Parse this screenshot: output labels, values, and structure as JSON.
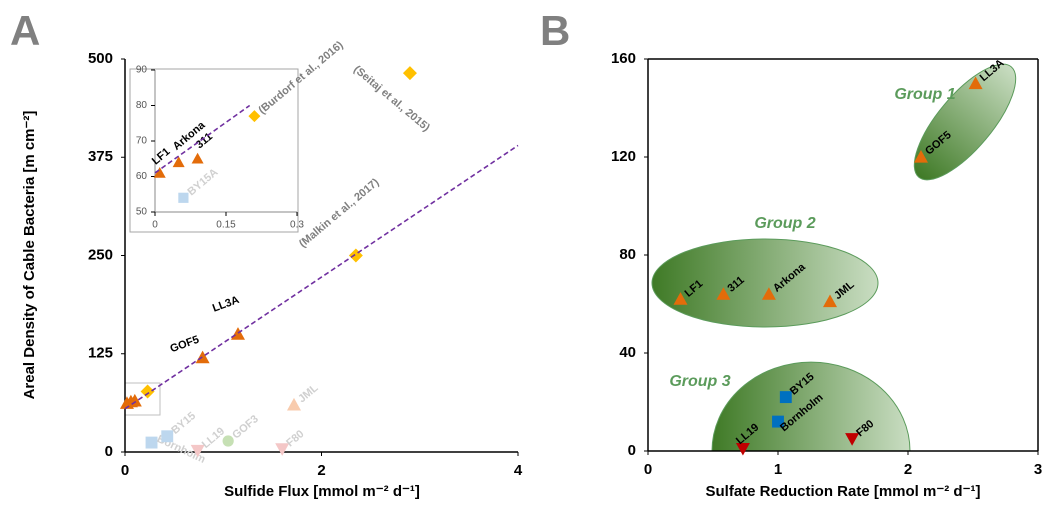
{
  "chart_data": [
    {
      "type": "scatter",
      "panel": "A",
      "x_label": "Sulfide Flux [mmol m⁻² d⁻¹]",
      "y_label": "Areal Density of Cable Bacteria [m cm⁻²]",
      "xlim": [
        0,
        4
      ],
      "ylim": [
        0,
        500
      ],
      "xticks": [
        0,
        2,
        4
      ],
      "yticks": [
        0,
        125,
        250,
        375,
        500
      ],
      "series": [
        {
          "marker": "triangle",
          "color": "#e36c0a",
          "label_color": "#000000",
          "x": [
            0.02,
            0.06,
            0.1,
            0.79,
            1.15
          ],
          "values": [
            62,
            64,
            65,
            120,
            150
          ],
          "labels": [
            null,
            null,
            null,
            "GOF5",
            "LL3A"
          ]
        },
        {
          "marker": "diamond",
          "color": "#ffc000",
          "label_color": "#7f7f7f",
          "x": [
            0.23,
            2.35,
            2.9
          ],
          "values": [
            77,
            250,
            482
          ],
          "labels": [
            null,
            "(Malkin et al., 2017)",
            "(Seitaj et al., 2015)"
          ]
        },
        {
          "marker": "square",
          "color": "#bdd7ee",
          "label_color": "#d0d0d0",
          "x": [
            0.27,
            0.43
          ],
          "values": [
            12,
            20
          ],
          "labels": [
            "Bornholm",
            "BY15"
          ]
        },
        {
          "marker": "triangle-down",
          "color": "#f4c7c7",
          "label_color": "#d0d0d0",
          "x": [
            0.74,
            1.6
          ],
          "values": [
            2,
            4
          ],
          "labels": [
            "LL19",
            "F80"
          ]
        },
        {
          "marker": "circle",
          "color": "#c6e0b4",
          "label_color": "#d0d0d0",
          "x": [
            1.05
          ],
          "values": [
            14
          ],
          "labels": [
            "GOF3"
          ]
        },
        {
          "marker": "triangle",
          "color": "#f8cbad",
          "label_color": "#d0d0d0",
          "x": [
            1.72
          ],
          "values": [
            60
          ],
          "labels": [
            "JML"
          ]
        },
        {
          "marker": "dashed-line",
          "color": "#7030a0",
          "x": [
            0,
            4
          ],
          "values": [
            55,
            390
          ]
        }
      ]
    },
    {
      "type": "scatter",
      "xlim": [
        0,
        0.3
      ],
      "ylim": [
        50,
        90
      ],
      "xticks": [
        0,
        0.15,
        0.3
      ],
      "yticks": [
        50,
        60,
        70,
        80,
        90
      ],
      "series": [
        {
          "marker": "triangle",
          "color": "#e36c0a",
          "label_color": "#000000",
          "x": [
            0.01,
            0.05,
            0.09
          ],
          "values": [
            61,
            64,
            65
          ],
          "labels": [
            "LF1",
            "Arkona",
            "311"
          ]
        },
        {
          "marker": "diamond",
          "color": "#ffc000",
          "label_color": "#7f7f7f",
          "x": [
            0.21
          ],
          "values": [
            77
          ],
          "labels": [
            "(Burdorf et al., 2016)"
          ]
        },
        {
          "marker": "square",
          "color": "#bdd7ee",
          "label_color": "#d0d0d0",
          "x": [
            0.06
          ],
          "values": [
            54
          ],
          "labels": [
            "BY15A"
          ]
        },
        {
          "marker": "dashed-line",
          "color": "#7030a0",
          "x": [
            0,
            0.2
          ],
          "values": [
            61,
            80
          ]
        }
      ]
    },
    {
      "type": "scatter",
      "panel": "B",
      "x_label": "Sulfate Reduction Rate [mmol m⁻² d⁻¹]",
      "xlim": [
        0,
        3
      ],
      "ylim": [
        0,
        160
      ],
      "xticks": [
        0,
        1,
        2,
        3
      ],
      "yticks": [
        0,
        40,
        80,
        120,
        160
      ],
      "groups": [
        "Group 1",
        "Group 2",
        "Group 3"
      ],
      "series": [
        {
          "marker": "triangle",
          "color": "#e36c0a",
          "label_color": "#000000",
          "x": [
            0.25,
            0.58,
            0.93,
            1.4,
            2.1,
            2.52
          ],
          "values": [
            62,
            64,
            64,
            61,
            120,
            150
          ],
          "labels": [
            "LF1",
            "311",
            "Arkona",
            "JML",
            "GOF5",
            "LL3A"
          ]
        },
        {
          "marker": "square",
          "color": "#0070c0",
          "label_color": "#000000",
          "x": [
            1.06,
            1.0
          ],
          "values": [
            22,
            12
          ],
          "labels": [
            "BY15",
            "Bornholm"
          ]
        },
        {
          "marker": "triangle-down",
          "color": "#c00000",
          "label_color": "#000000",
          "x": [
            0.73,
            1.57
          ],
          "values": [
            1,
            5
          ],
          "labels": [
            "LL19",
            "F80"
          ]
        }
      ]
    }
  ]
}
